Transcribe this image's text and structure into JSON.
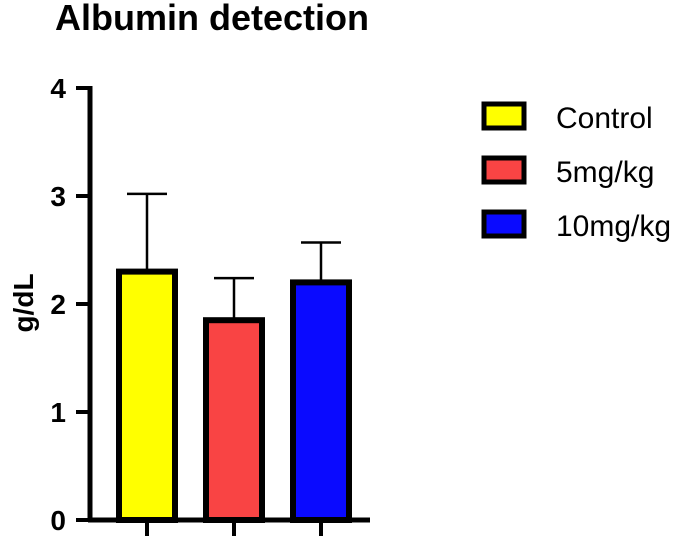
{
  "chart_data": {
    "type": "bar",
    "title": "Albumin detection",
    "xlabel": "",
    "ylabel": "g/dL",
    "ylim": [
      0,
      4
    ],
    "yticks": [
      0,
      1,
      2,
      3,
      4
    ],
    "categories": [
      "Control",
      "5mg/kg",
      "10mg/kg"
    ],
    "values": [
      2.3,
      1.85,
      2.2
    ],
    "error_upper": [
      0.72,
      0.39,
      0.37
    ],
    "colors": [
      "#ffff00",
      "#f94444",
      "#0a0aff"
    ],
    "legend": {
      "position": "right",
      "entries": [
        "Control",
        "5mg/kg",
        "10mg/kg"
      ]
    },
    "grid": false
  }
}
